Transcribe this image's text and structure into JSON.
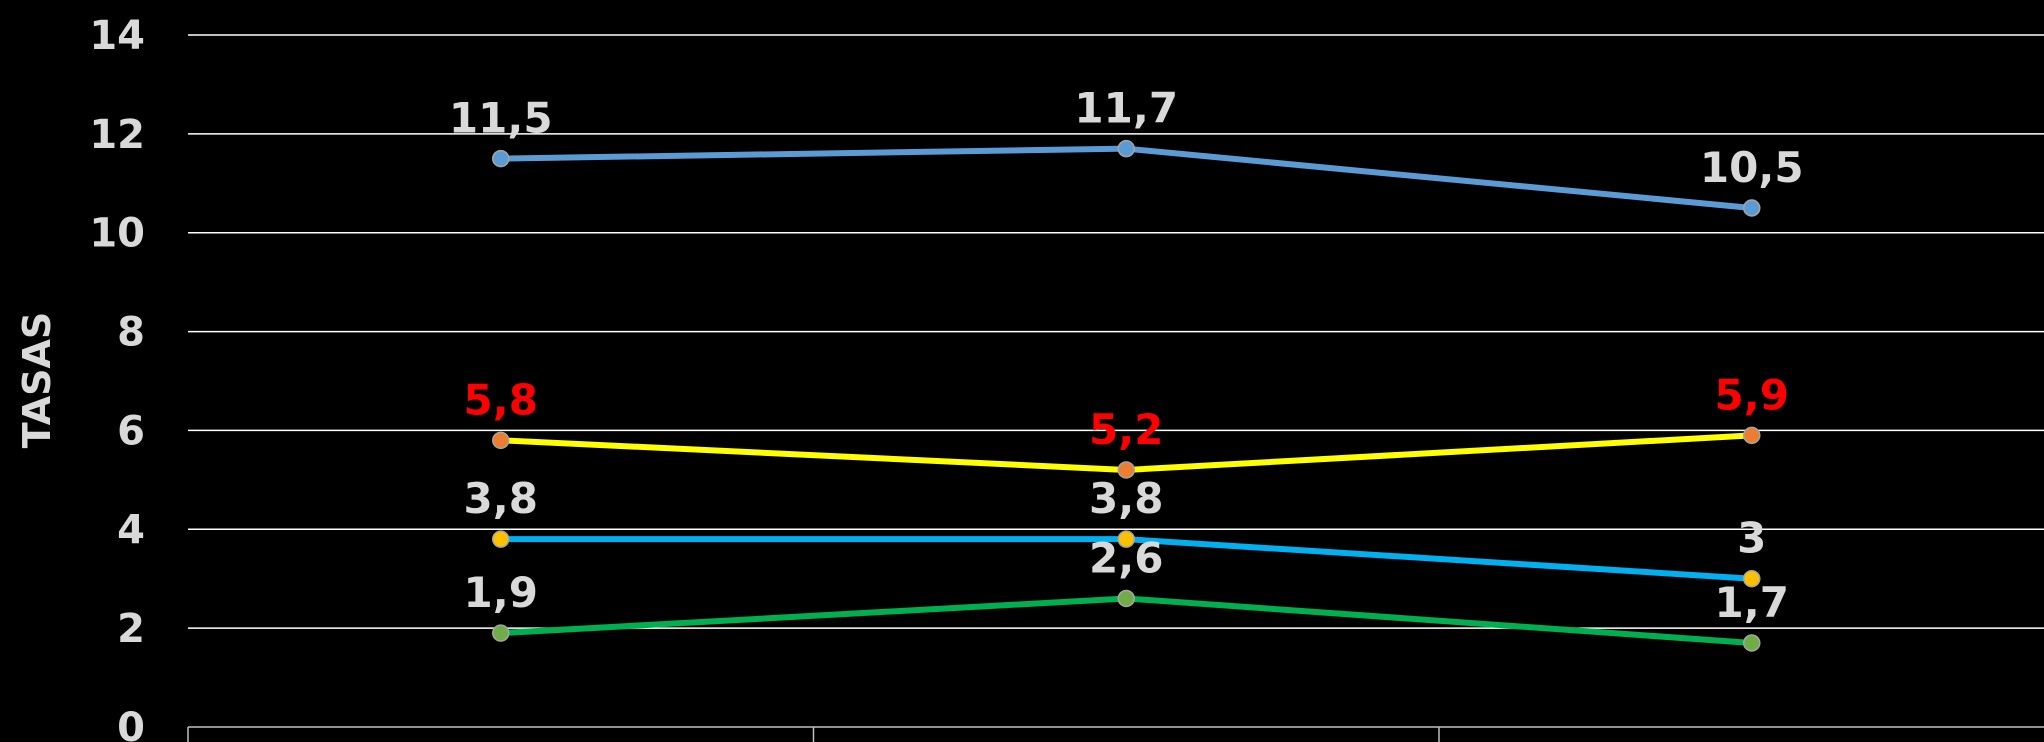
{
  "chart_data": {
    "type": "line",
    "title": "",
    "ylabel": "TASAS",
    "xlabel": "",
    "ylim": [
      0,
      14
    ],
    "yticks": [
      0,
      2,
      4,
      6,
      8,
      10,
      12,
      14
    ],
    "ytick_labels": [
      "0",
      "2",
      "4",
      "6",
      "8",
      "10",
      "12",
      "14"
    ],
    "categories": [
      "",
      "",
      ""
    ],
    "grid": true,
    "legend": "none",
    "background": "#000000",
    "series": [
      {
        "color": "#5b9bd5",
        "marker_color": "#5b9bd5",
        "label_color": "#d9d9d9",
        "values": [
          11.5,
          11.7,
          10.5
        ],
        "labels": [
          "11,5",
          "11,7",
          "10,5"
        ],
        "label_position": "above"
      },
      {
        "color": "#ffff00",
        "marker_color": "#ed7d31",
        "label_color": "#ff0000",
        "values": [
          5.8,
          5.2,
          5.9
        ],
        "labels": [
          "5,8",
          "5,2",
          "5,9"
        ],
        "label_position": "above"
      },
      {
        "color": "#00b0f0",
        "marker_color": "#ffc000",
        "label_color": "#d9d9d9",
        "values": [
          3.8,
          3.8,
          3.0
        ],
        "labels": [
          "3,8",
          "3,8",
          "3"
        ],
        "label_position": "above"
      },
      {
        "color": "#00b050",
        "marker_color": "#70ad47",
        "label_color": "#d9d9d9",
        "values": [
          1.9,
          2.6,
          1.7
        ],
        "labels": [
          "1,9",
          "2,6",
          "1,7"
        ],
        "label_position": "above"
      }
    ]
  }
}
